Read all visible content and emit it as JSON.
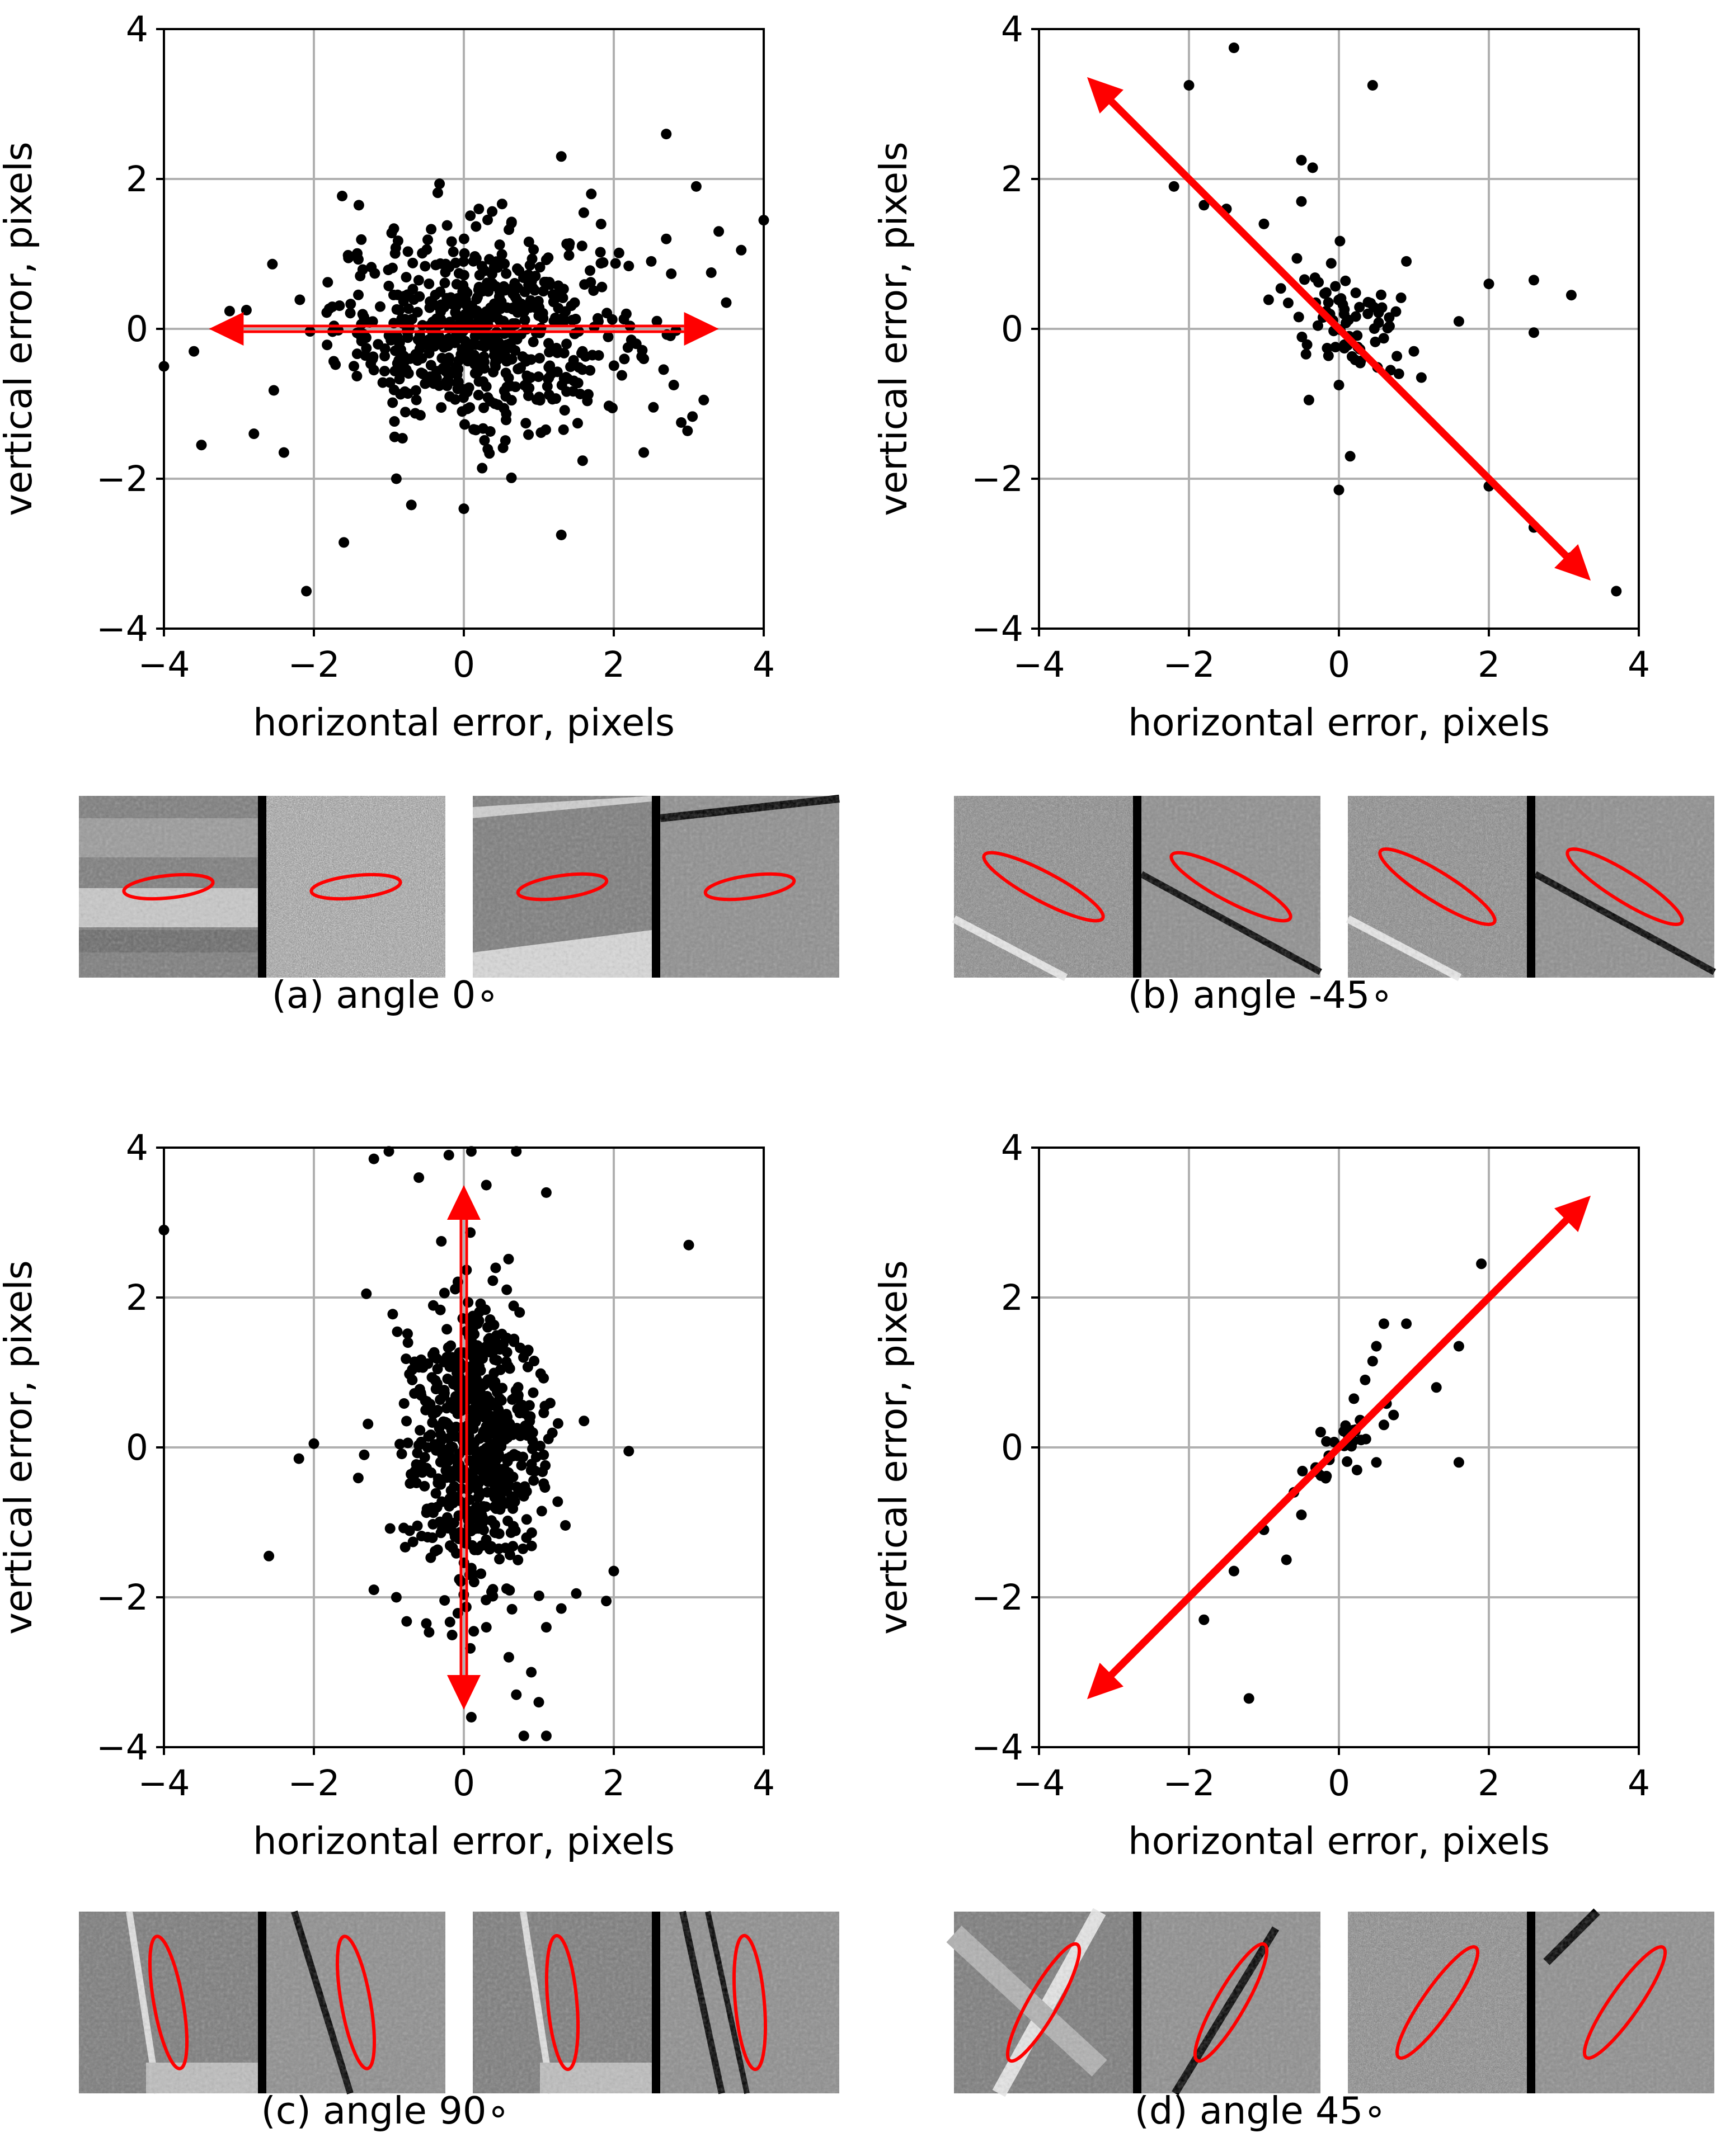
{
  "chart_data": [
    {
      "id": "a",
      "type": "scatter",
      "caption": "(a) angle 0∘",
      "xlabel": "horizontal error, pixels",
      "ylabel": "vertical error, pixels",
      "xlim": [
        -4,
        4
      ],
      "ylim": [
        -4,
        4
      ],
      "xticks": [
        -4,
        -2,
        0,
        2,
        4
      ],
      "yticks": [
        -4,
        -2,
        0,
        2,
        4
      ],
      "tick_labels": [
        "−4",
        "−2",
        "0",
        "2",
        "4"
      ],
      "grid": true,
      "arrow_angle_deg": 0,
      "arrow_length": 3.4,
      "spread": {
        "major": 0.95,
        "minor": 0.65,
        "n": 620
      },
      "points": [
        [
          -4.0,
          -0.5
        ],
        [
          -3.6,
          -0.3
        ],
        [
          -3.5,
          -1.55
        ],
        [
          -3.1,
          0.0
        ],
        [
          -2.9,
          0.25
        ],
        [
          -2.8,
          -1.4
        ],
        [
          -2.4,
          -1.65
        ],
        [
          -2.1,
          -3.5
        ],
        [
          -1.6,
          -2.85
        ],
        [
          -1.4,
          1.65
        ],
        [
          -1.2,
          -0.55
        ],
        [
          -0.9,
          -2.0
        ],
        [
          -0.7,
          -2.35
        ],
        [
          0.0,
          -2.4
        ],
        [
          0.2,
          1.6
        ],
        [
          1.3,
          -2.75
        ],
        [
          1.3,
          2.3
        ],
        [
          1.6,
          1.55
        ],
        [
          1.7,
          1.8
        ],
        [
          2.3,
          -0.2
        ],
        [
          2.4,
          -0.4
        ],
        [
          2.4,
          -1.65
        ],
        [
          2.7,
          2.6
        ],
        [
          2.7,
          1.2
        ],
        [
          2.8,
          -0.75
        ],
        [
          2.9,
          -1.25
        ],
        [
          3.1,
          1.9
        ],
        [
          3.2,
          -0.95
        ],
        [
          3.3,
          0.75
        ],
        [
          3.4,
          1.3
        ],
        [
          3.7,
          1.05
        ],
        [
          4.0,
          1.45
        ],
        [
          3.5,
          0.35
        ],
        [
          2.5,
          0.9
        ]
      ],
      "thumbnails": [
        {
          "kind": "stripes",
          "ellipse_angle": -6,
          "noise": false
        },
        {
          "kind": "noise",
          "ellipse_angle": -6,
          "noise": true
        },
        {
          "kind": "diag",
          "ellipse_angle": -8,
          "noise": false
        },
        {
          "kind": "edge",
          "ellipse_angle": -8,
          "noise": false
        }
      ]
    },
    {
      "id": "b",
      "type": "scatter",
      "caption": "(b) angle -45∘",
      "xlabel": "horizontal error, pixels",
      "ylabel": "vertical error, pixels",
      "xlim": [
        -4,
        4
      ],
      "ylim": [
        -4,
        4
      ],
      "xticks": [
        -4,
        -2,
        0,
        2,
        4
      ],
      "yticks": [
        -4,
        -2,
        0,
        2,
        4
      ],
      "tick_labels": [
        "−4",
        "−2",
        "0",
        "2",
        "4"
      ],
      "grid": true,
      "arrow_angle_deg": -45,
      "arrow_length": 4.75,
      "spread": {
        "major": 0.45,
        "minor": 0.3,
        "n": 70
      },
      "points": [
        [
          -2.0,
          3.25
        ],
        [
          -1.4,
          3.75
        ],
        [
          0.45,
          3.25
        ],
        [
          -2.2,
          1.9
        ],
        [
          -1.8,
          1.65
        ],
        [
          -1.5,
          1.6
        ],
        [
          -1.0,
          1.4
        ],
        [
          -0.5,
          2.25
        ],
        [
          -0.35,
          2.15
        ],
        [
          -0.5,
          1.7
        ],
        [
          3.7,
          -3.5
        ],
        [
          3.1,
          -3.05
        ],
        [
          2.6,
          -2.65
        ],
        [
          2.0,
          -2.1
        ],
        [
          0.15,
          -1.7
        ],
        [
          -0.4,
          -0.95
        ],
        [
          0.0,
          -2.15
        ],
        [
          0.0,
          -0.75
        ],
        [
          1.6,
          0.1
        ],
        [
          2.0,
          0.6
        ],
        [
          2.6,
          0.65
        ],
        [
          2.6,
          -0.05
        ],
        [
          3.1,
          0.45
        ],
        [
          0.9,
          0.9
        ],
        [
          1.0,
          -0.3
        ],
        [
          1.1,
          -0.65
        ],
        [
          0.8,
          -0.6
        ]
      ],
      "thumbnails": [
        {
          "kind": "diagband",
          "ellipse_angle": 28,
          "noise": true
        },
        {
          "kind": "edgediag",
          "ellipse_angle": 28,
          "noise": false
        },
        {
          "kind": "diagband",
          "ellipse_angle": 32,
          "noise": false
        },
        {
          "kind": "edgediag",
          "ellipse_angle": 32,
          "noise": false
        }
      ]
    },
    {
      "id": "c",
      "type": "scatter",
      "caption": "(c) angle 90∘",
      "xlabel": "horizontal error, pixels",
      "ylabel": "vertical error, pixels",
      "xlim": [
        -4,
        4
      ],
      "ylim": [
        -4,
        4
      ],
      "xticks": [
        -4,
        -2,
        0,
        2,
        4
      ],
      "yticks": [
        -4,
        -2,
        0,
        2,
        4
      ],
      "tick_labels": [
        "−4",
        "−2",
        "0",
        "2",
        "4"
      ],
      "grid": true,
      "arrow_angle_deg": 90,
      "arrow_length": 3.5,
      "spread": {
        "major": 0.95,
        "minor": 0.45,
        "n": 620
      },
      "points": [
        [
          -4.0,
          2.9
        ],
        [
          -2.6,
          -1.45
        ],
        [
          -2.2,
          -0.15
        ],
        [
          -2.0,
          0.05
        ],
        [
          -1.3,
          2.05
        ],
        [
          -1.2,
          -1.9
        ],
        [
          -0.9,
          -2.0
        ],
        [
          -1.2,
          3.85
        ],
        [
          -1.0,
          3.95
        ],
        [
          -0.6,
          3.6
        ],
        [
          -0.2,
          3.9
        ],
        [
          0.1,
          3.95
        ],
        [
          0.7,
          3.95
        ],
        [
          1.1,
          3.4
        ],
        [
          0.3,
          3.5
        ],
        [
          -0.3,
          2.75
        ],
        [
          3.0,
          2.7
        ],
        [
          2.2,
          -0.05
        ],
        [
          2.0,
          -1.65
        ],
        [
          1.9,
          -2.05
        ],
        [
          1.3,
          -2.15
        ],
        [
          1.1,
          -2.4
        ],
        [
          1.0,
          -3.4
        ],
        [
          0.8,
          -3.85
        ],
        [
          1.1,
          -3.85
        ],
        [
          0.1,
          -3.6
        ],
        [
          0.6,
          -2.8
        ],
        [
          0.9,
          -3.0
        ],
        [
          0.3,
          -2.4
        ],
        [
          -0.5,
          -2.35
        ],
        [
          1.5,
          -1.95
        ],
        [
          0.7,
          -3.3
        ]
      ],
      "thumbnails": [
        {
          "kind": "vband",
          "ellipse_angle": 80,
          "noise": false
        },
        {
          "kind": "vedge",
          "ellipse_angle": 80,
          "noise": false
        },
        {
          "kind": "vband",
          "ellipse_angle": 85,
          "noise": false
        },
        {
          "kind": "vedge2",
          "ellipse_angle": 85,
          "noise": false
        }
      ]
    },
    {
      "id": "d",
      "type": "scatter",
      "caption": "(d) angle 45∘",
      "xlabel": "horizontal error, pixels",
      "ylabel": "vertical error, pixels",
      "xlim": [
        -4,
        4
      ],
      "ylim": [
        -4,
        4
      ],
      "xticks": [
        -4,
        -2,
        0,
        2,
        4
      ],
      "yticks": [
        -4,
        -2,
        0,
        2,
        4
      ],
      "tick_labels": [
        "−4",
        "−2",
        "0",
        "2",
        "4"
      ],
      "grid": true,
      "arrow_angle_deg": 45,
      "arrow_length": 4.75,
      "spread": {
        "major": 0.35,
        "minor": 0.15,
        "n": 30
      },
      "points": [
        [
          1.9,
          2.45
        ],
        [
          1.6,
          1.35
        ],
        [
          1.6,
          -0.2
        ],
        [
          1.3,
          0.8
        ],
        [
          0.6,
          1.65
        ],
        [
          0.9,
          1.65
        ],
        [
          0.5,
          1.35
        ],
        [
          0.6,
          0.3
        ],
        [
          0.5,
          -0.2
        ],
        [
          -0.5,
          -0.9
        ],
        [
          -0.7,
          -1.5
        ],
        [
          -1.0,
          -1.1
        ],
        [
          -1.4,
          -1.65
        ],
        [
          -1.8,
          -2.3
        ],
        [
          -1.2,
          -3.35
        ],
        [
          -0.6,
          -0.6
        ],
        [
          0.2,
          0.65
        ],
        [
          0.35,
          0.9
        ],
        [
          0.45,
          1.15
        ]
      ],
      "thumbnails": [
        {
          "kind": "diagup",
          "ellipse_angle": -60,
          "noise": false
        },
        {
          "kind": "edgeup",
          "ellipse_angle": -60,
          "noise": false
        },
        {
          "kind": "noiseup",
          "ellipse_angle": -55,
          "noise": true
        },
        {
          "kind": "edgeup2",
          "ellipse_angle": -55,
          "noise": false
        }
      ]
    }
  ]
}
